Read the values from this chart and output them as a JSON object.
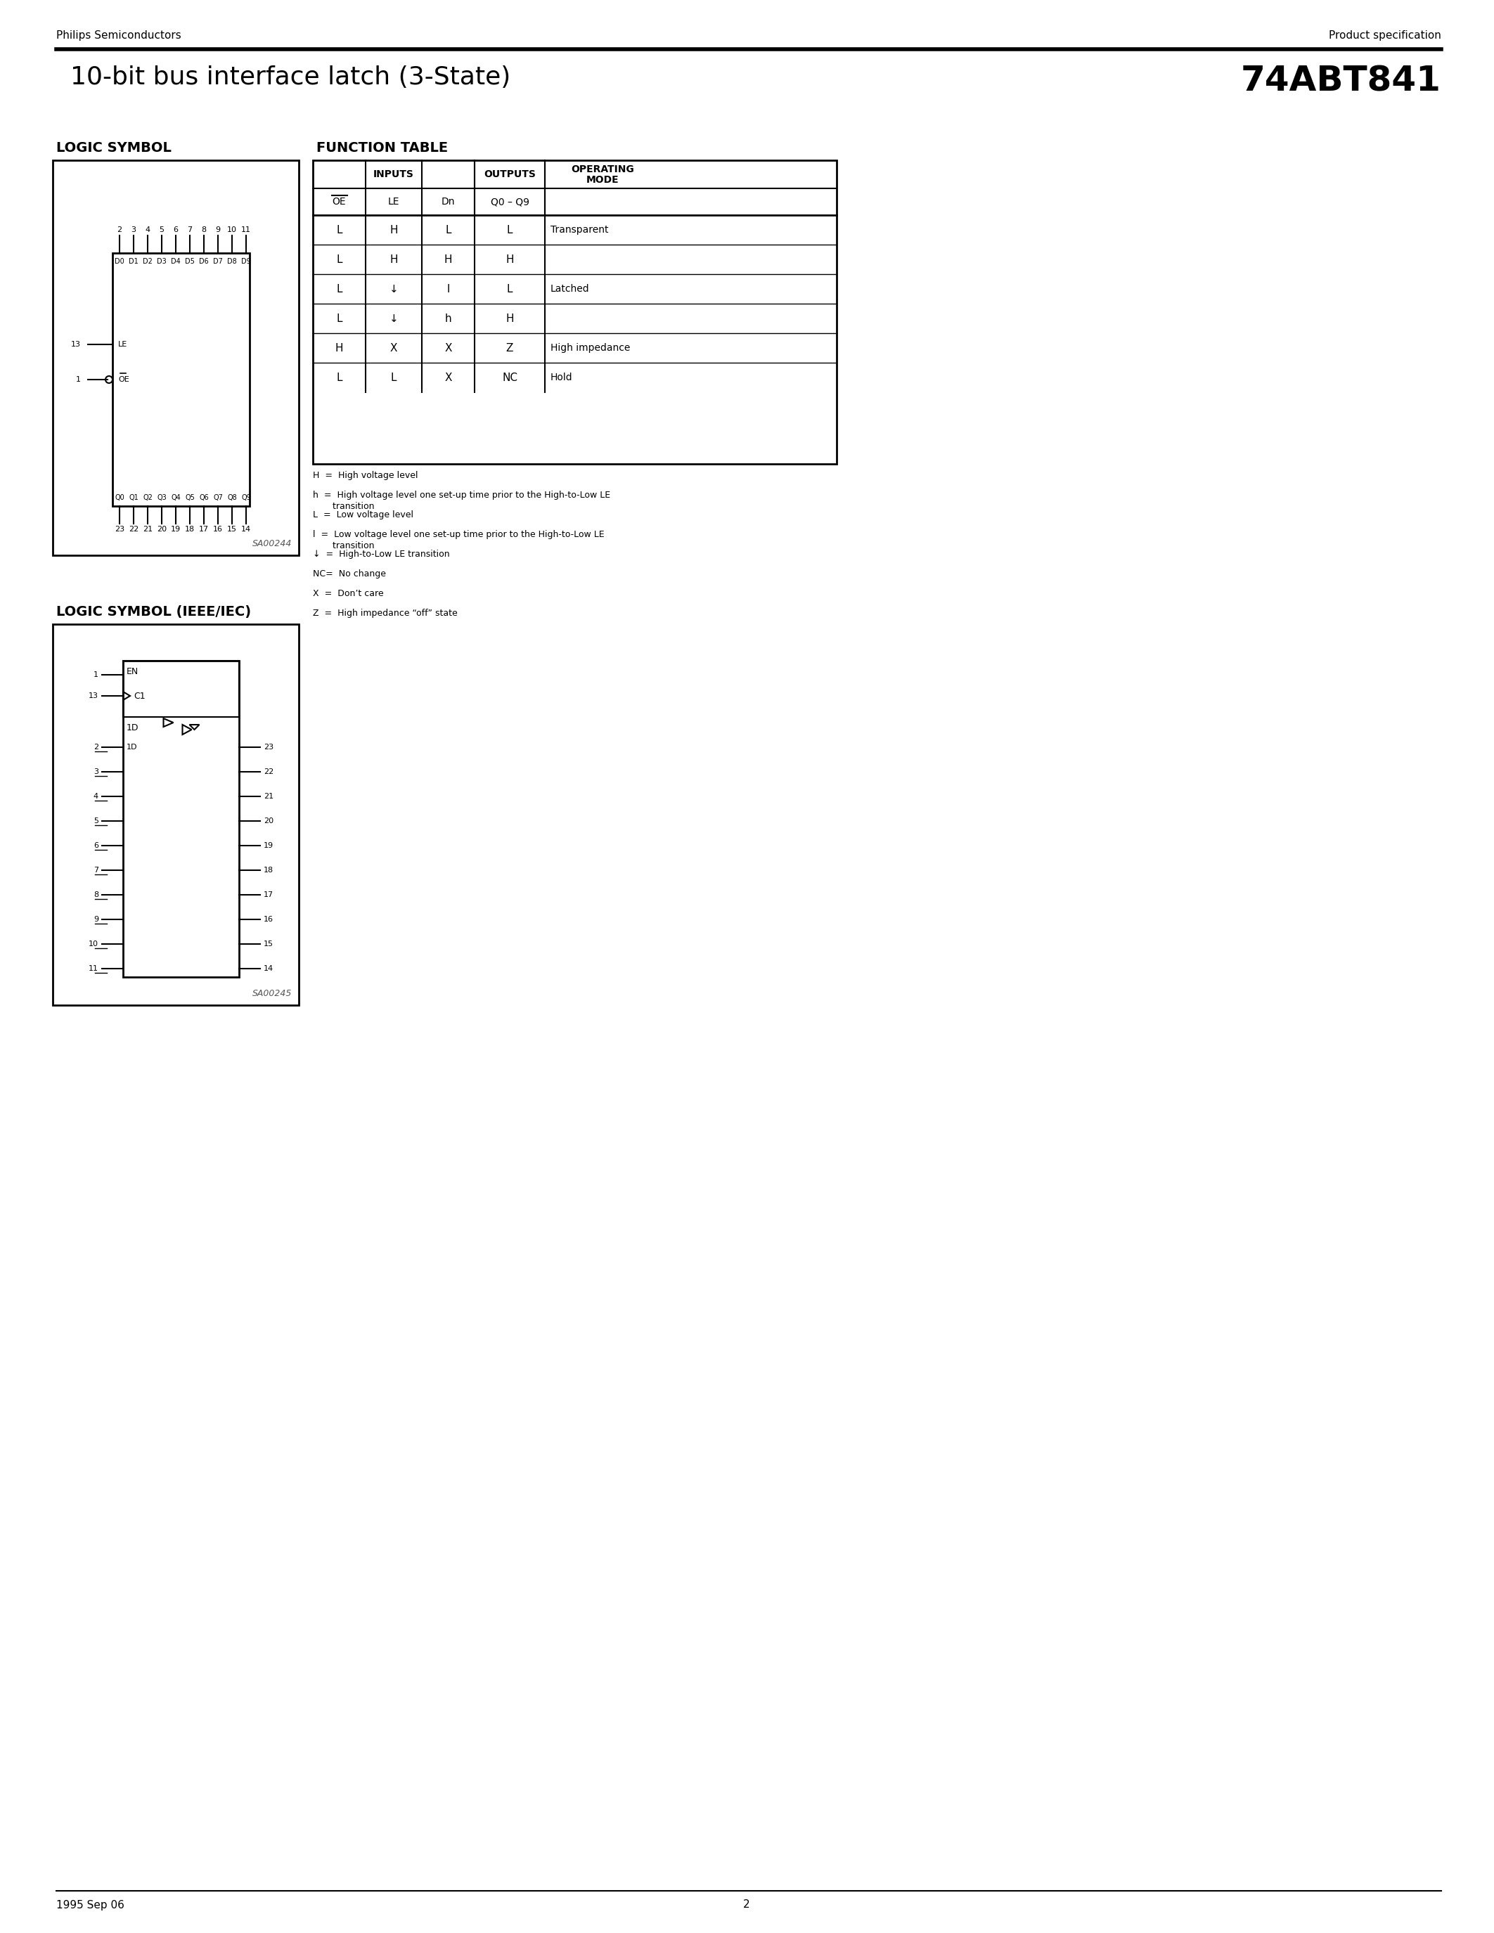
{
  "page_title": "10-bit bus interface latch (3-State)",
  "part_number": "74ABT841",
  "company": "Philips Semiconductors",
  "product_type": "Product specification",
  "page_number": "2",
  "date": "1995 Sep 06",
  "logic_symbol_title": "LOGIC SYMBOL",
  "logic_symbol_ieee_title": "LOGIC SYMBOL (IEEE/IEC)",
  "function_table_title": "FUNCTION TABLE",
  "ft_inputs_header": "INPUTS",
  "ft_outputs_header": "OUTPUTS",
  "ft_opmode_header": "OPERATING\nMODE",
  "ft_col1": "OE",
  "ft_col2": "LE",
  "ft_col3": "Dn",
  "ft_col4": "Q0 – Q9",
  "ft_rows": [
    [
      "L",
      "H",
      "L",
      "L",
      "Transparent"
    ],
    [
      "L",
      "H",
      "H",
      "H",
      ""
    ],
    [
      "L",
      "↓",
      "l",
      "L",
      "Latched"
    ],
    [
      "L",
      "↓",
      "h",
      "H",
      ""
    ],
    [
      "H",
      "X",
      "X",
      "Z",
      "High impedance"
    ],
    [
      "L",
      "L",
      "X",
      "NC",
      "Hold"
    ]
  ],
  "ft_notes": [
    "H  =  High voltage level",
    "h  =  High voltage level one set-up time prior to the High-to-Low LE\n       transition",
    "L  =  Low voltage level",
    "l  =  Low voltage level one set-up time prior to the High-to-Low LE\n       transition",
    "↓  =  High-to-Low LE transition",
    "NC=  No change",
    "X  =  Don’t care",
    "Z  =  High impedance “off” state"
  ],
  "bg_color": "#ffffff",
  "text_color": "#000000",
  "line_color": "#000000",
  "input_pins_top": [
    "2",
    "3",
    "4",
    "5",
    "6",
    "7",
    "8",
    "9",
    "10",
    "11"
  ],
  "input_labels_top": [
    "D0",
    "D1",
    "D2",
    "D3",
    "D4",
    "D5",
    "D6",
    "D7",
    "D8",
    "D9"
  ],
  "output_pins_bot": [
    "23",
    "22",
    "21",
    "20",
    "19",
    "18",
    "17",
    "16",
    "15",
    "14"
  ],
  "output_labels_bot": [
    "Q0",
    "Q1",
    "Q2",
    "Q3",
    "Q4",
    "Q5",
    "Q6",
    "Q7",
    "Q8",
    "Q9"
  ],
  "left_pins": [
    [
      "13",
      "LE"
    ],
    [
      "1",
      "OE"
    ]
  ],
  "sa00244": "SA00244",
  "sa00245": "SA00245",
  "ieee_en_pin": "1",
  "ieee_c1_pin": "13",
  "ieee_1d_label": "1D",
  "ieee_input_pins": [
    "2",
    "3",
    "4",
    "5",
    "6",
    "7",
    "8",
    "9",
    "10",
    "11"
  ],
  "ieee_output_pins": [
    "23",
    "22",
    "21",
    "20",
    "19",
    "18",
    "17",
    "16",
    "15",
    "14"
  ]
}
